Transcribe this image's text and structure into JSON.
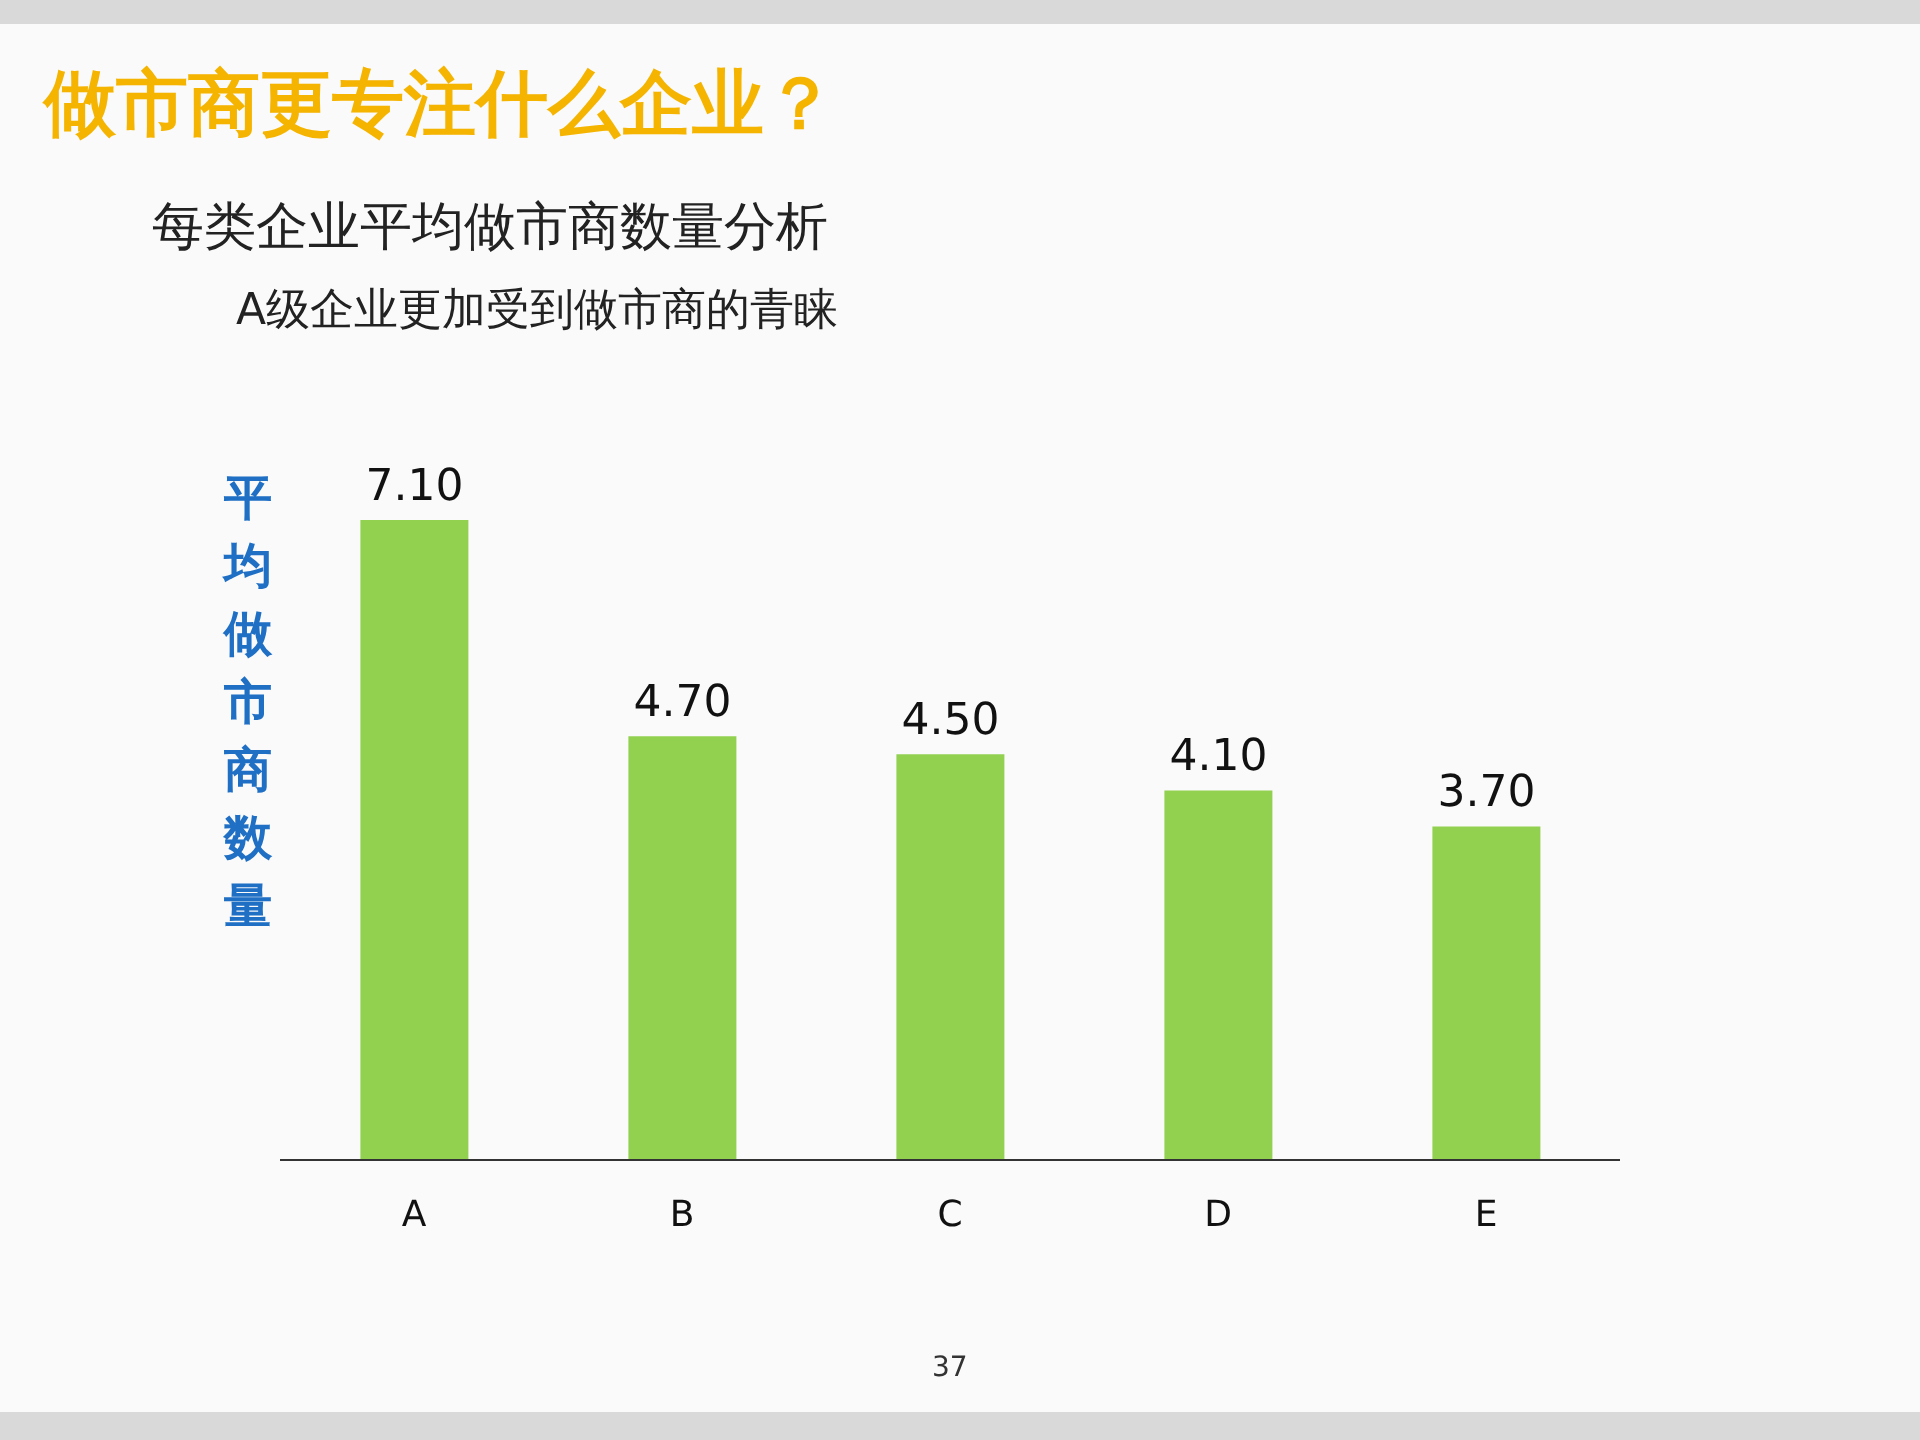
{
  "chart_data": {
    "type": "bar",
    "title": "做市商更专注什么企业？",
    "subtitle": "每类企业平均做市商数量分析",
    "ylabel": "平均做市商数量",
    "categories": [
      "A",
      "B",
      "C",
      "D",
      "E"
    ],
    "values": [
      7.1,
      4.7,
      4.5,
      4.1,
      3.7
    ],
    "value_labels": [
      "7.10",
      "4.70",
      "4.50",
      "4.10",
      "3.70"
    ],
    "color": "#92d050",
    "annotations": [
      "A级企业更加受到做市商的青睐",
      "37"
    ]
  }
}
